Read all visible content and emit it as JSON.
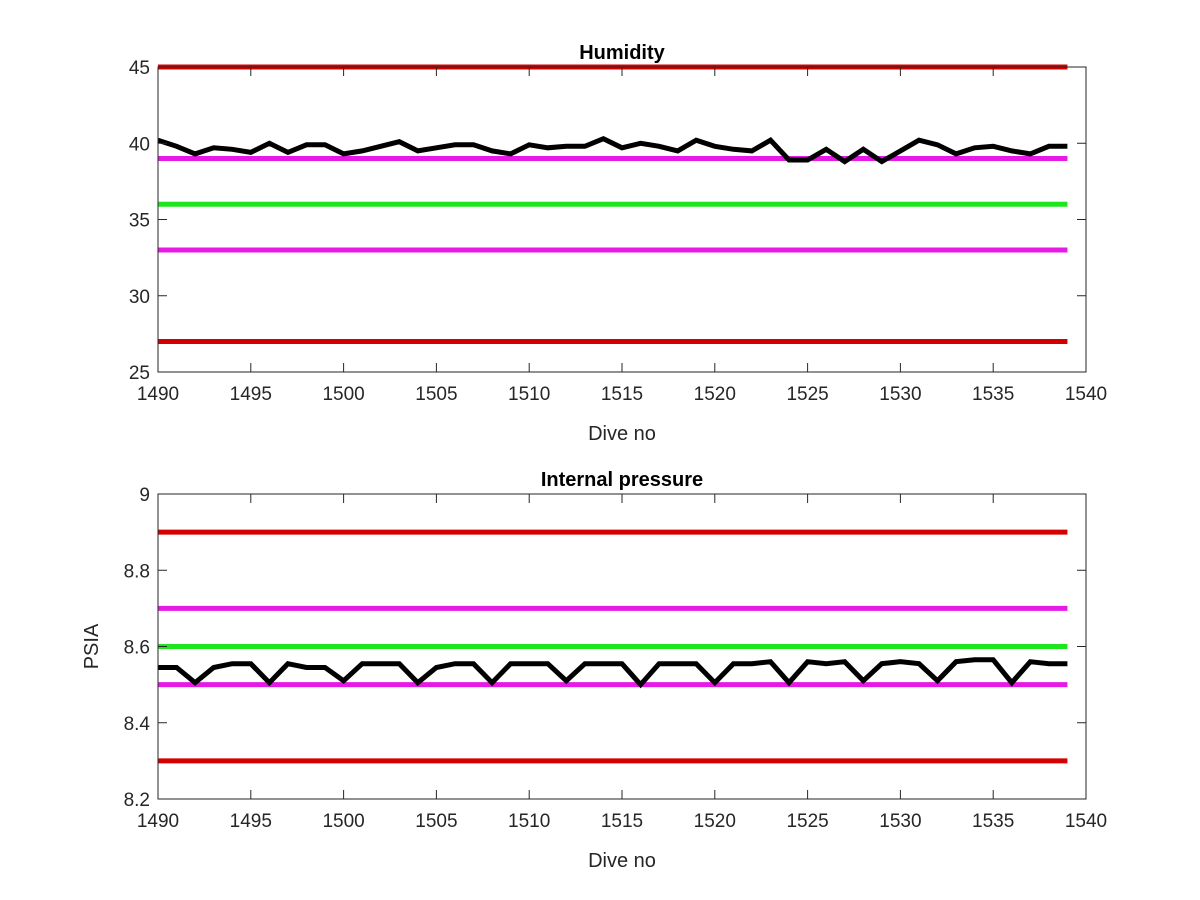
{
  "chart_data": [
    {
      "type": "line",
      "title": "Humidity",
      "xlabel": "Dive no",
      "ylabel": "",
      "xlim": [
        1490,
        1540
      ],
      "ylim": [
        25,
        45
      ],
      "xticks": [
        1490,
        1495,
        1500,
        1505,
        1510,
        1515,
        1520,
        1525,
        1530,
        1535,
        1540
      ],
      "yticks": [
        25,
        30,
        35,
        40,
        45
      ],
      "grid": false,
      "legend": "none",
      "reference_lines": [
        {
          "y": 45,
          "color": "#d40000"
        },
        {
          "y": 39,
          "color": "#e619e6"
        },
        {
          "y": 36,
          "color": "#1ee61e"
        },
        {
          "y": 33,
          "color": "#e619e6"
        },
        {
          "y": 27,
          "color": "#d40000"
        }
      ],
      "series": [
        {
          "color": "#000000",
          "x": [
            1490,
            1491,
            1492,
            1493,
            1494,
            1495,
            1496,
            1497,
            1498,
            1499,
            1500,
            1501,
            1502,
            1503,
            1504,
            1505,
            1506,
            1507,
            1508,
            1509,
            1510,
            1511,
            1512,
            1513,
            1514,
            1515,
            1516,
            1517,
            1518,
            1519,
            1520,
            1521,
            1522,
            1523,
            1524,
            1525,
            1526,
            1527,
            1528,
            1529,
            1530,
            1531,
            1532,
            1533,
            1534,
            1535,
            1536,
            1537,
            1538,
            1539
          ],
          "values": [
            40.2,
            39.8,
            39.3,
            39.7,
            39.6,
            39.4,
            40.0,
            39.4,
            39.9,
            39.9,
            39.3,
            39.5,
            39.8,
            40.1,
            39.5,
            39.7,
            39.9,
            39.9,
            39.5,
            39.3,
            39.9,
            39.7,
            39.8,
            39.8,
            40.3,
            39.7,
            40.0,
            39.8,
            39.5,
            40.2,
            39.8,
            39.6,
            39.5,
            40.2,
            38.9,
            38.9,
            39.6,
            38.8,
            39.6,
            38.8,
            39.5,
            40.2,
            39.9,
            39.3,
            39.7,
            39.8,
            39.5,
            39.3,
            39.8,
            39.8
          ]
        }
      ]
    },
    {
      "type": "line",
      "title": "Internal pressure",
      "xlabel": "Dive no",
      "ylabel": "PSIA",
      "xlim": [
        1490,
        1540
      ],
      "ylim": [
        8.2,
        9
      ],
      "xticks": [
        1490,
        1495,
        1500,
        1505,
        1510,
        1515,
        1520,
        1525,
        1530,
        1535,
        1540
      ],
      "yticks": [
        "8.2",
        "8.4",
        "8.6",
        "8.8",
        "9"
      ],
      "grid": false,
      "legend": "none",
      "reference_lines": [
        {
          "y": 8.9,
          "color": "#d40000"
        },
        {
          "y": 8.7,
          "color": "#e619e6"
        },
        {
          "y": 8.6,
          "color": "#1ee61e"
        },
        {
          "y": 8.5,
          "color": "#e619e6"
        },
        {
          "y": 8.3,
          "color": "#d40000"
        }
      ],
      "series": [
        {
          "color": "#000000",
          "x": [
            1490,
            1491,
            1492,
            1493,
            1494,
            1495,
            1496,
            1497,
            1498,
            1499,
            1500,
            1501,
            1502,
            1503,
            1504,
            1505,
            1506,
            1507,
            1508,
            1509,
            1510,
            1511,
            1512,
            1513,
            1514,
            1515,
            1516,
            1517,
            1518,
            1519,
            1520,
            1521,
            1522,
            1523,
            1524,
            1525,
            1526,
            1527,
            1528,
            1529,
            1530,
            1531,
            1532,
            1533,
            1534,
            1535,
            1536,
            1537,
            1538,
            1539
          ],
          "values": [
            8.545,
            8.545,
            8.505,
            8.545,
            8.555,
            8.555,
            8.505,
            8.555,
            8.545,
            8.545,
            8.51,
            8.555,
            8.555,
            8.555,
            8.505,
            8.545,
            8.555,
            8.555,
            8.505,
            8.555,
            8.555,
            8.555,
            8.51,
            8.555,
            8.555,
            8.555,
            8.5,
            8.555,
            8.555,
            8.555,
            8.505,
            8.555,
            8.555,
            8.56,
            8.505,
            8.56,
            8.555,
            8.56,
            8.51,
            8.555,
            8.56,
            8.555,
            8.51,
            8.56,
            8.565,
            8.565,
            8.505,
            8.56,
            8.555,
            8.555
          ]
        }
      ]
    }
  ]
}
